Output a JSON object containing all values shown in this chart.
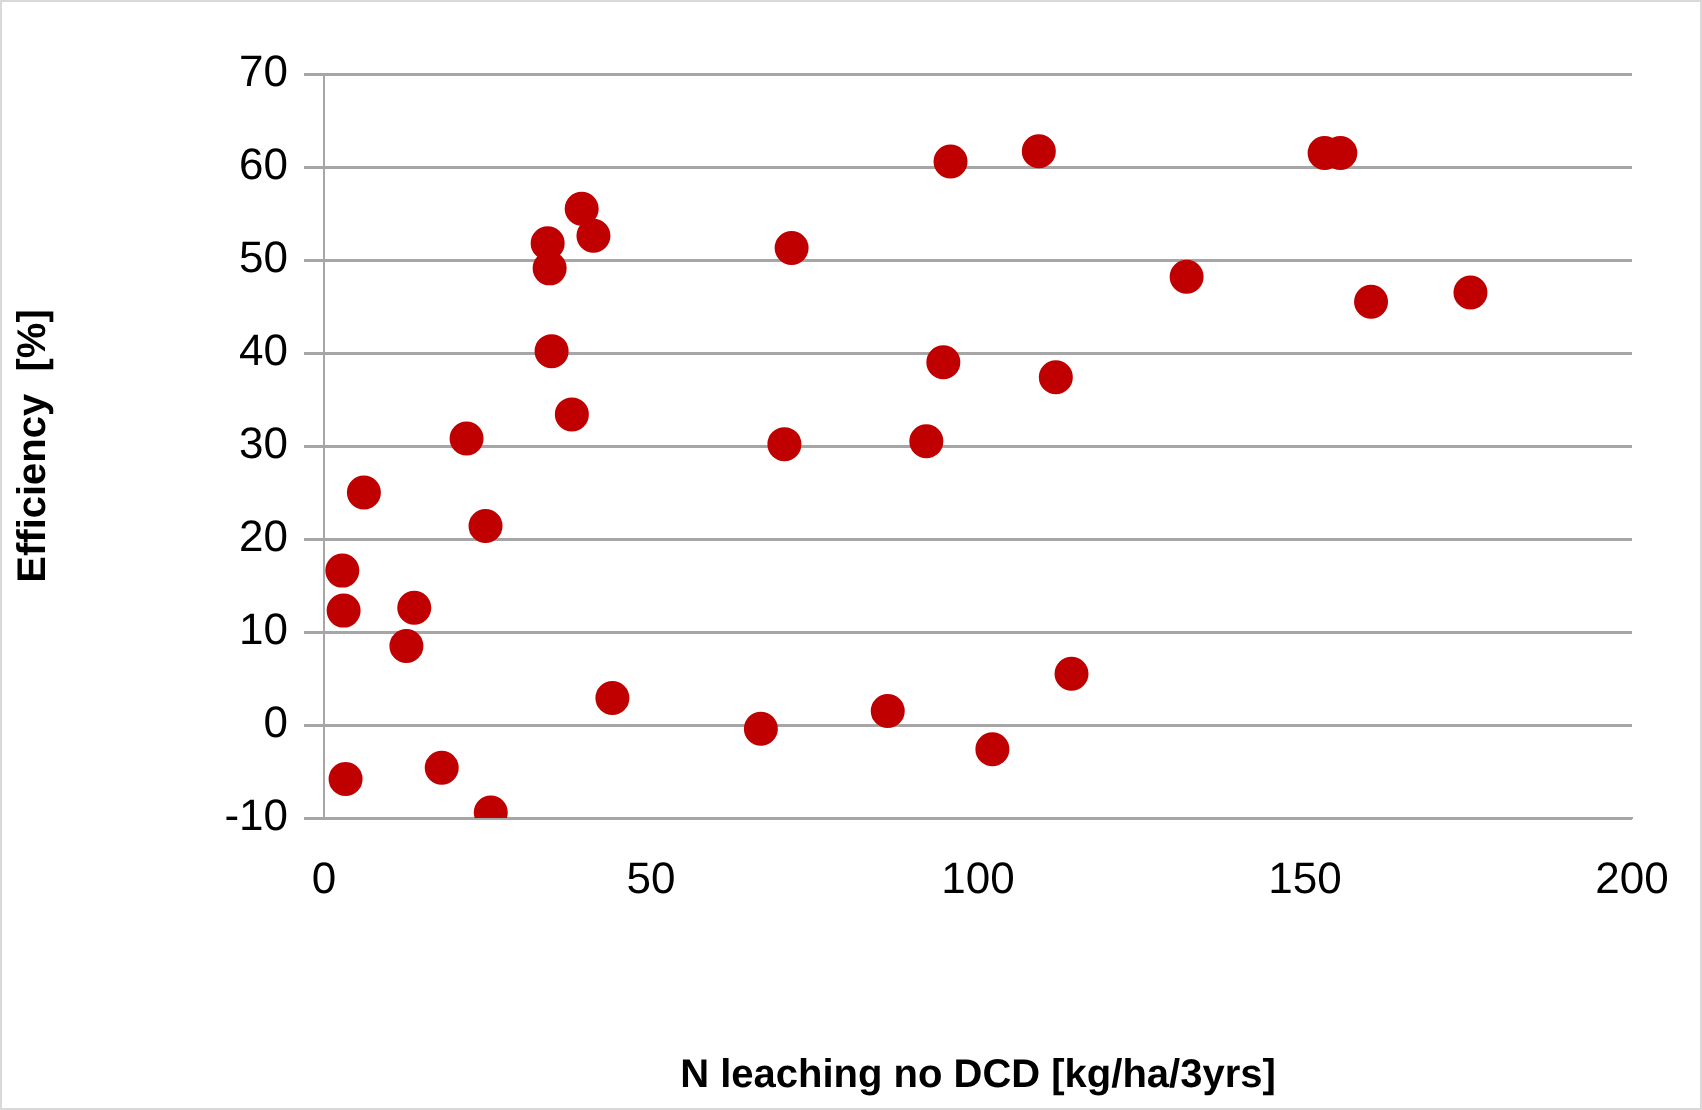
{
  "chart_data": {
    "type": "scatter",
    "xlabel": "N leaching no DCD [kg/ha/3yrs]",
    "ylabel": "Efficiency  [%]",
    "xlim": [
      0,
      200
    ],
    "xticks": [
      0,
      50,
      100,
      150,
      200
    ],
    "ylim": [
      -10,
      70
    ],
    "yticks": [
      -10,
      0,
      10,
      20,
      30,
      40,
      50,
      60,
      70
    ],
    "grid": "y",
    "marker": "circle",
    "series": [
      {
        "color": "#c00000",
        "x": [
          2.8,
          3.0,
          3.3,
          6.1,
          12.6,
          13.8,
          18.0,
          21.8,
          24.7,
          25.5,
          34.2,
          34.5,
          34.8,
          37.9,
          39.4,
          41.2,
          44.1,
          66.8,
          70.4,
          71.5,
          86.2,
          92.1,
          94.7,
          95.8,
          102.2,
          109.3,
          111.9,
          114.3,
          131.9,
          153.0,
          155.4,
          160.1,
          175.3
        ],
        "values": [
          16.6,
          12.3,
          -5.8,
          25.0,
          8.5,
          12.6,
          -4.6,
          30.8,
          21.4,
          -9.4,
          51.8,
          49.1,
          40.2,
          33.4,
          55.5,
          52.6,
          2.9,
          -0.4,
          30.2,
          51.3,
          1.5,
          30.5,
          39.0,
          60.6,
          -2.6,
          61.7,
          37.4,
          5.5,
          48.2,
          61.5,
          61.5,
          45.5,
          46.5
        ]
      }
    ]
  }
}
